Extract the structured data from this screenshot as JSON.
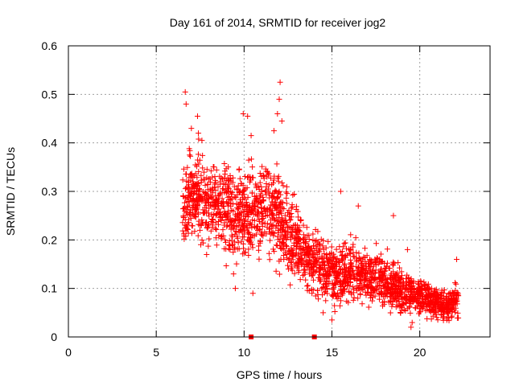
{
  "chart_data": {
    "type": "scatter",
    "title": "Day 161 of 2014, SRMTID for receiver jog2",
    "xlabel": "GPS time / hours",
    "ylabel": "SRMTID / TECUs",
    "xlim": [
      0,
      24
    ],
    "ylim": [
      0,
      0.6
    ],
    "xticks": [
      0,
      5,
      10,
      15,
      20
    ],
    "yticks": [
      0,
      0.1,
      0.2,
      0.3,
      0.4,
      0.5,
      0.6
    ],
    "xtick_labels": [
      "0",
      "5",
      "10",
      "15",
      "20"
    ],
    "ytick_labels": [
      "0",
      "0.1",
      "0.2",
      "0.3",
      "0.4",
      "0.5",
      "0.6"
    ],
    "grid": true,
    "legend": "none",
    "marker": "plus",
    "color": "#ff0000",
    "series": [
      {
        "name": "SRMTID",
        "envelope_note": "dense point cloud approximated by local centre/spread",
        "x_range": [
          6.5,
          22.2
        ],
        "centre": [
          [
            6.5,
            0.28
          ],
          [
            7.5,
            0.29
          ],
          [
            8.5,
            0.27
          ],
          [
            9.5,
            0.25
          ],
          [
            10.5,
            0.26
          ],
          [
            11.5,
            0.27
          ],
          [
            12.5,
            0.21
          ],
          [
            13.5,
            0.17
          ],
          [
            14.5,
            0.14
          ],
          [
            15.5,
            0.13
          ],
          [
            16.5,
            0.13
          ],
          [
            17.5,
            0.12
          ],
          [
            18.5,
            0.1
          ],
          [
            19.5,
            0.09
          ],
          [
            20.5,
            0.08
          ],
          [
            21.5,
            0.06
          ],
          [
            22.2,
            0.08
          ]
        ],
        "spread": [
          [
            6.5,
            0.08
          ],
          [
            8,
            0.07
          ],
          [
            10,
            0.08
          ],
          [
            12,
            0.08
          ],
          [
            13,
            0.06
          ],
          [
            15,
            0.05
          ],
          [
            17,
            0.05
          ],
          [
            19,
            0.04
          ],
          [
            21,
            0.03
          ],
          [
            22.2,
            0.03
          ]
        ],
        "peaks": [
          {
            "x": 6.65,
            "y": 0.505
          },
          {
            "x": 6.7,
            "y": 0.48
          },
          {
            "x": 7.0,
            "y": 0.43
          },
          {
            "x": 7.35,
            "y": 0.455
          },
          {
            "x": 7.4,
            "y": 0.42
          },
          {
            "x": 7.6,
            "y": 0.405
          },
          {
            "x": 9.95,
            "y": 0.46
          },
          {
            "x": 10.2,
            "y": 0.455
          },
          {
            "x": 10.4,
            "y": 0.415
          },
          {
            "x": 11.7,
            "y": 0.425
          },
          {
            "x": 11.9,
            "y": 0.46
          },
          {
            "x": 12.0,
            "y": 0.49
          },
          {
            "x": 12.05,
            "y": 0.525
          },
          {
            "x": 12.15,
            "y": 0.445
          },
          {
            "x": 10.5,
            "y": 0.09
          },
          {
            "x": 9.5,
            "y": 0.1
          },
          {
            "x": 9.4,
            "y": 0.13
          },
          {
            "x": 14.5,
            "y": 0.05
          },
          {
            "x": 15.0,
            "y": 0.035
          },
          {
            "x": 15.5,
            "y": 0.3
          },
          {
            "x": 16.5,
            "y": 0.27
          },
          {
            "x": 18.5,
            "y": 0.25
          },
          {
            "x": 19.3,
            "y": 0.18
          },
          {
            "x": 22.1,
            "y": 0.16
          },
          {
            "x": 19.5,
            "y": 0.02
          }
        ],
        "zero_markers": [
          {
            "x": 10.4,
            "y": 0.0
          },
          {
            "x": 14.0,
            "y": 0.0
          }
        ],
        "approx_point_count": 2300
      }
    ]
  }
}
